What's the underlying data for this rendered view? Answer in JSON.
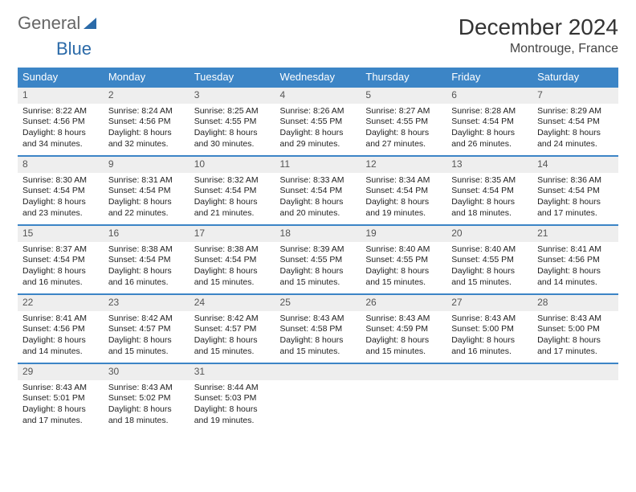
{
  "logo": {
    "part1": "General",
    "part2": "Blue"
  },
  "title": "December 2024",
  "location": "Montrouge, France",
  "colors": {
    "header_bg": "#3c85c6",
    "row_border": "#3c85c6",
    "daynum_bg": "#eeeeee",
    "logo_blue": "#2b6aa8",
    "text": "#222222"
  },
  "weekdays": [
    "Sunday",
    "Monday",
    "Tuesday",
    "Wednesday",
    "Thursday",
    "Friday",
    "Saturday"
  ],
  "days": [
    {
      "n": "1",
      "sr": "Sunrise: 8:22 AM",
      "ss": "Sunset: 4:56 PM",
      "d1": "Daylight: 8 hours",
      "d2": "and 34 minutes."
    },
    {
      "n": "2",
      "sr": "Sunrise: 8:24 AM",
      "ss": "Sunset: 4:56 PM",
      "d1": "Daylight: 8 hours",
      "d2": "and 32 minutes."
    },
    {
      "n": "3",
      "sr": "Sunrise: 8:25 AM",
      "ss": "Sunset: 4:55 PM",
      "d1": "Daylight: 8 hours",
      "d2": "and 30 minutes."
    },
    {
      "n": "4",
      "sr": "Sunrise: 8:26 AM",
      "ss": "Sunset: 4:55 PM",
      "d1": "Daylight: 8 hours",
      "d2": "and 29 minutes."
    },
    {
      "n": "5",
      "sr": "Sunrise: 8:27 AM",
      "ss": "Sunset: 4:55 PM",
      "d1": "Daylight: 8 hours",
      "d2": "and 27 minutes."
    },
    {
      "n": "6",
      "sr": "Sunrise: 8:28 AM",
      "ss": "Sunset: 4:54 PM",
      "d1": "Daylight: 8 hours",
      "d2": "and 26 minutes."
    },
    {
      "n": "7",
      "sr": "Sunrise: 8:29 AM",
      "ss": "Sunset: 4:54 PM",
      "d1": "Daylight: 8 hours",
      "d2": "and 24 minutes."
    },
    {
      "n": "8",
      "sr": "Sunrise: 8:30 AM",
      "ss": "Sunset: 4:54 PM",
      "d1": "Daylight: 8 hours",
      "d2": "and 23 minutes."
    },
    {
      "n": "9",
      "sr": "Sunrise: 8:31 AM",
      "ss": "Sunset: 4:54 PM",
      "d1": "Daylight: 8 hours",
      "d2": "and 22 minutes."
    },
    {
      "n": "10",
      "sr": "Sunrise: 8:32 AM",
      "ss": "Sunset: 4:54 PM",
      "d1": "Daylight: 8 hours",
      "d2": "and 21 minutes."
    },
    {
      "n": "11",
      "sr": "Sunrise: 8:33 AM",
      "ss": "Sunset: 4:54 PM",
      "d1": "Daylight: 8 hours",
      "d2": "and 20 minutes."
    },
    {
      "n": "12",
      "sr": "Sunrise: 8:34 AM",
      "ss": "Sunset: 4:54 PM",
      "d1": "Daylight: 8 hours",
      "d2": "and 19 minutes."
    },
    {
      "n": "13",
      "sr": "Sunrise: 8:35 AM",
      "ss": "Sunset: 4:54 PM",
      "d1": "Daylight: 8 hours",
      "d2": "and 18 minutes."
    },
    {
      "n": "14",
      "sr": "Sunrise: 8:36 AM",
      "ss": "Sunset: 4:54 PM",
      "d1": "Daylight: 8 hours",
      "d2": "and 17 minutes."
    },
    {
      "n": "15",
      "sr": "Sunrise: 8:37 AM",
      "ss": "Sunset: 4:54 PM",
      "d1": "Daylight: 8 hours",
      "d2": "and 16 minutes."
    },
    {
      "n": "16",
      "sr": "Sunrise: 8:38 AM",
      "ss": "Sunset: 4:54 PM",
      "d1": "Daylight: 8 hours",
      "d2": "and 16 minutes."
    },
    {
      "n": "17",
      "sr": "Sunrise: 8:38 AM",
      "ss": "Sunset: 4:54 PM",
      "d1": "Daylight: 8 hours",
      "d2": "and 15 minutes."
    },
    {
      "n": "18",
      "sr": "Sunrise: 8:39 AM",
      "ss": "Sunset: 4:55 PM",
      "d1": "Daylight: 8 hours",
      "d2": "and 15 minutes."
    },
    {
      "n": "19",
      "sr": "Sunrise: 8:40 AM",
      "ss": "Sunset: 4:55 PM",
      "d1": "Daylight: 8 hours",
      "d2": "and 15 minutes."
    },
    {
      "n": "20",
      "sr": "Sunrise: 8:40 AM",
      "ss": "Sunset: 4:55 PM",
      "d1": "Daylight: 8 hours",
      "d2": "and 15 minutes."
    },
    {
      "n": "21",
      "sr": "Sunrise: 8:41 AM",
      "ss": "Sunset: 4:56 PM",
      "d1": "Daylight: 8 hours",
      "d2": "and 14 minutes."
    },
    {
      "n": "22",
      "sr": "Sunrise: 8:41 AM",
      "ss": "Sunset: 4:56 PM",
      "d1": "Daylight: 8 hours",
      "d2": "and 14 minutes."
    },
    {
      "n": "23",
      "sr": "Sunrise: 8:42 AM",
      "ss": "Sunset: 4:57 PM",
      "d1": "Daylight: 8 hours",
      "d2": "and 15 minutes."
    },
    {
      "n": "24",
      "sr": "Sunrise: 8:42 AM",
      "ss": "Sunset: 4:57 PM",
      "d1": "Daylight: 8 hours",
      "d2": "and 15 minutes."
    },
    {
      "n": "25",
      "sr": "Sunrise: 8:43 AM",
      "ss": "Sunset: 4:58 PM",
      "d1": "Daylight: 8 hours",
      "d2": "and 15 minutes."
    },
    {
      "n": "26",
      "sr": "Sunrise: 8:43 AM",
      "ss": "Sunset: 4:59 PM",
      "d1": "Daylight: 8 hours",
      "d2": "and 15 minutes."
    },
    {
      "n": "27",
      "sr": "Sunrise: 8:43 AM",
      "ss": "Sunset: 5:00 PM",
      "d1": "Daylight: 8 hours",
      "d2": "and 16 minutes."
    },
    {
      "n": "28",
      "sr": "Sunrise: 8:43 AM",
      "ss": "Sunset: 5:00 PM",
      "d1": "Daylight: 8 hours",
      "d2": "and 17 minutes."
    },
    {
      "n": "29",
      "sr": "Sunrise: 8:43 AM",
      "ss": "Sunset: 5:01 PM",
      "d1": "Daylight: 8 hours",
      "d2": "and 17 minutes."
    },
    {
      "n": "30",
      "sr": "Sunrise: 8:43 AM",
      "ss": "Sunset: 5:02 PM",
      "d1": "Daylight: 8 hours",
      "d2": "and 18 minutes."
    },
    {
      "n": "31",
      "sr": "Sunrise: 8:44 AM",
      "ss": "Sunset: 5:03 PM",
      "d1": "Daylight: 8 hours",
      "d2": "and 19 minutes."
    }
  ],
  "layout": {
    "start_weekday": 0,
    "trailing_empty": 4
  }
}
